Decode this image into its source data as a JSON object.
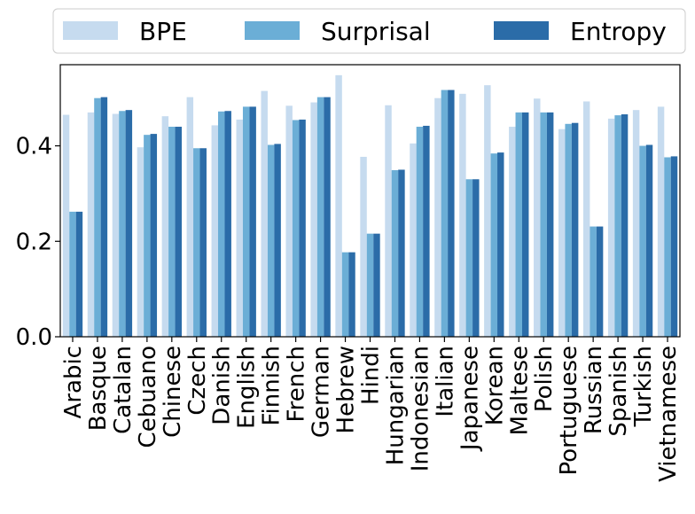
{
  "chart_data": {
    "type": "bar",
    "title": "",
    "xlabel": "",
    "ylabel": "",
    "ylim": [
      0,
      0.57
    ],
    "yticks": [
      0.0,
      0.2,
      0.4
    ],
    "ytick_labels": [
      "0.0",
      "0.2",
      "0.4"
    ],
    "grid": false,
    "legend_position": "top",
    "categories": [
      "Arabic",
      "Basque",
      "Catalan",
      "Cebuano",
      "Chinese",
      "Czech",
      "Danish",
      "English",
      "Finnish",
      "French",
      "German",
      "Hebrew",
      "Hindi",
      "Hungarian",
      "Indonesian",
      "Italian",
      "Japanese",
      "Korean",
      "Maltese",
      "Polish",
      "Portuguese",
      "Russian",
      "Spanish",
      "Turkish",
      "Vietnamese"
    ],
    "series": [
      {
        "name": "BPE",
        "color": "#c6dbef",
        "values": [
          0.465,
          0.47,
          0.467,
          0.397,
          0.462,
          0.502,
          0.443,
          0.455,
          0.515,
          0.484,
          0.491,
          0.548,
          0.377,
          0.485,
          0.405,
          0.5,
          0.509,
          0.527,
          0.44,
          0.499,
          0.435,
          0.493,
          0.457,
          0.475,
          0.482
        ]
      },
      {
        "name": "Surprisal",
        "color": "#6baed6",
        "values": [
          0.262,
          0.5,
          0.473,
          0.423,
          0.44,
          0.395,
          0.472,
          0.482,
          0.402,
          0.454,
          0.502,
          0.177,
          0.216,
          0.349,
          0.44,
          0.517,
          0.33,
          0.384,
          0.47,
          0.47,
          0.446,
          0.231,
          0.464,
          0.4,
          0.376
        ]
      },
      {
        "name": "Entropy",
        "color": "#2b6ca8",
        "values": [
          0.262,
          0.502,
          0.475,
          0.425,
          0.44,
          0.395,
          0.473,
          0.482,
          0.404,
          0.455,
          0.502,
          0.177,
          0.216,
          0.35,
          0.442,
          0.517,
          0.33,
          0.386,
          0.47,
          0.47,
          0.448,
          0.231,
          0.466,
          0.402,
          0.378
        ]
      }
    ]
  }
}
